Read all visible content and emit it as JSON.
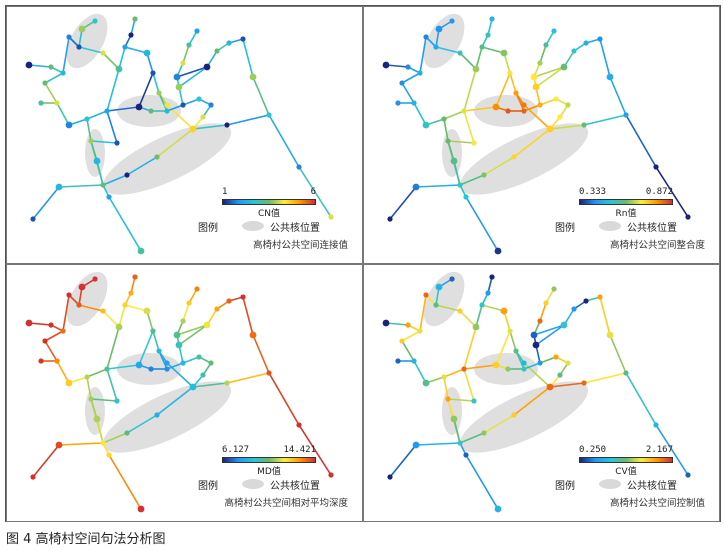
{
  "panels": [
    {
      "subtitle": "高椅村公共空间连接值",
      "colorbar": {
        "min": "1",
        "max": "6",
        "name": "CN值"
      },
      "scheme": "cn"
    },
    {
      "subtitle": "高椅村公共空间整合度",
      "colorbar": {
        "min": "0.333",
        "max": "0.872",
        "name": "Rn值"
      },
      "scheme": "rn"
    },
    {
      "subtitle": "高椅村公共空间相对平均深度",
      "colorbar": {
        "min": "6.127",
        "max": "14.421",
        "name": "MD值"
      },
      "scheme": "md"
    },
    {
      "subtitle": "高椅村公共空间控制值",
      "colorbar": {
        "min": "0.250",
        "max": "2.167",
        "name": "CV值"
      },
      "scheme": "cv"
    }
  ],
  "legend": {
    "title": "图例",
    "core_label": "公共核位置"
  },
  "caption": "图 4  高椅村空间句法分析图",
  "colors": {
    "core": "#d9d9d9",
    "ramp": [
      "#1a237e",
      "#2196f3",
      "#26c6da",
      "#66bb6a",
      "#ffeb3b",
      "#ff9800",
      "#d32f2f"
    ]
  }
}
